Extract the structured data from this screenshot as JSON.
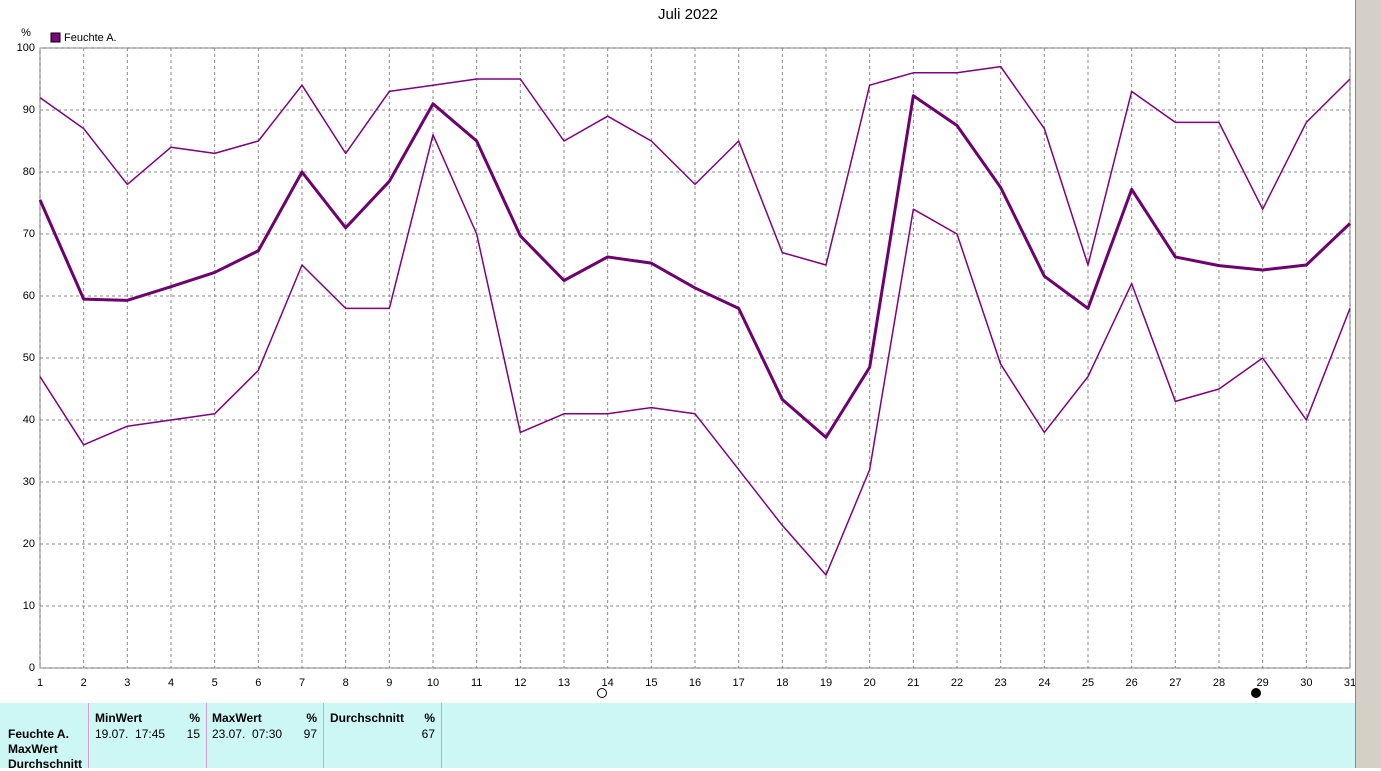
{
  "chart_data": {
    "type": "line",
    "title": "Juli 2022",
    "y_unit": "%",
    "legend": "Feuchte A.",
    "legend_color": "#800080",
    "x": [
      1,
      2,
      3,
      4,
      5,
      6,
      7,
      8,
      9,
      10,
      11,
      12,
      13,
      14,
      15,
      16,
      17,
      18,
      19,
      20,
      21,
      22,
      23,
      24,
      25,
      26,
      27,
      28,
      29,
      30,
      31
    ],
    "series": [
      {
        "color": "#800080",
        "line_width": 1.5,
        "values": [
          92,
          87,
          78,
          84,
          83,
          85,
          94,
          83,
          93,
          94,
          95,
          95,
          85,
          89,
          85,
          78,
          85,
          67,
          65,
          94,
          96,
          96,
          97,
          87,
          65,
          93,
          88,
          88,
          74,
          88,
          95
        ]
      },
      {
        "color": "#6f006f",
        "line_width": 3,
        "values": [
          75.5,
          59.5,
          59.3,
          61.5,
          63.8,
          67.3,
          80,
          71,
          78.5,
          91,
          85,
          69.7,
          62.5,
          66.3,
          65.3,
          61.3,
          58,
          43.3,
          37.2,
          48.5,
          92.3,
          87.5,
          77.5,
          63.2,
          58,
          77.2,
          66.3,
          64.9,
          64.2,
          65,
          71.7
        ]
      },
      {
        "color": "#800080",
        "line_width": 1.5,
        "values": [
          47,
          36,
          39,
          40,
          41,
          48,
          65,
          58,
          58,
          86,
          70,
          38,
          41,
          41,
          42,
          41,
          32,
          23,
          15,
          32,
          74,
          70,
          49,
          38,
          47,
          62,
          43,
          45,
          50,
          40,
          58
        ]
      }
    ],
    "xlim": [
      1,
      31
    ],
    "xticks": [
      1,
      2,
      3,
      4,
      5,
      6,
      7,
      8,
      9,
      10,
      11,
      12,
      13,
      14,
      15,
      16,
      17,
      18,
      19,
      20,
      21,
      22,
      23,
      24,
      25,
      26,
      27,
      28,
      29,
      30,
      31
    ],
    "ylim": [
      0,
      100
    ],
    "yticks": [
      0,
      10,
      20,
      30,
      40,
      50,
      60,
      70,
      80,
      90,
      100
    ],
    "grid": true
  },
  "stats": {
    "row_labels": [
      "Feuchte A.",
      "MaxWert",
      "Durchschnitt"
    ],
    "columns": [
      {
        "title": "MinWert",
        "unit": "%",
        "time": "19.07.  17:45",
        "value": 15
      },
      {
        "title": "MaxWert",
        "unit": "%",
        "time": "23.07.  07:30",
        "value": 97
      },
      {
        "title": "Durchschnitt",
        "unit": "%",
        "value": 67
      }
    ]
  }
}
